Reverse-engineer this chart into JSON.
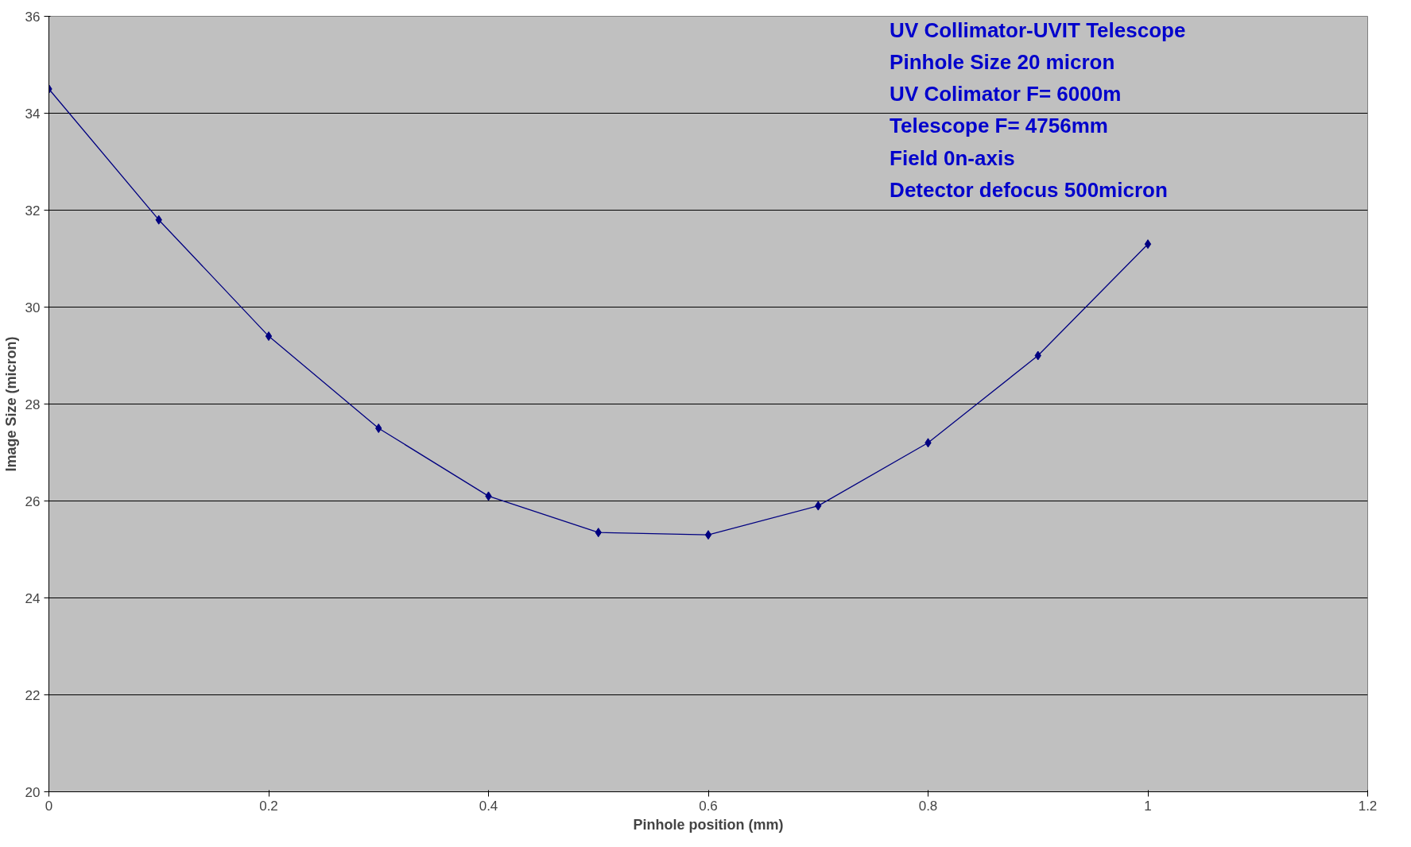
{
  "chart_data": {
    "type": "line",
    "xlabel": "Pinhole position (mm)",
    "ylabel": "Image Size (micron)",
    "x": [
      0,
      0.1,
      0.2,
      0.3,
      0.4,
      0.5,
      0.6,
      0.7,
      0.8,
      0.9,
      1.0
    ],
    "series": [
      {
        "color": "#000080",
        "values": [
          34.5,
          31.8,
          29.4,
          27.5,
          26.1,
          25.35,
          25.3,
          25.9,
          27.2,
          29.0,
          31.3
        ]
      }
    ],
    "xlim": [
      0,
      1.2
    ],
    "xticks": [
      0,
      0.2,
      0.4,
      0.6,
      0.8,
      1,
      1.2
    ],
    "ylim": [
      20,
      36
    ],
    "yticks": [
      20,
      22,
      24,
      26,
      28,
      30,
      32,
      34,
      36
    ],
    "grid": "y",
    "marker": "diamond",
    "line_style": "solid",
    "annotations": [
      " UV Collimator-UVIT Telescope",
      "Pinhole Size 20 micron",
      "UV Colimator F= 6000m",
      "Telescope F= 4756mm",
      "Field  0n-axis",
      "Detector defocus 500micron"
    ]
  }
}
